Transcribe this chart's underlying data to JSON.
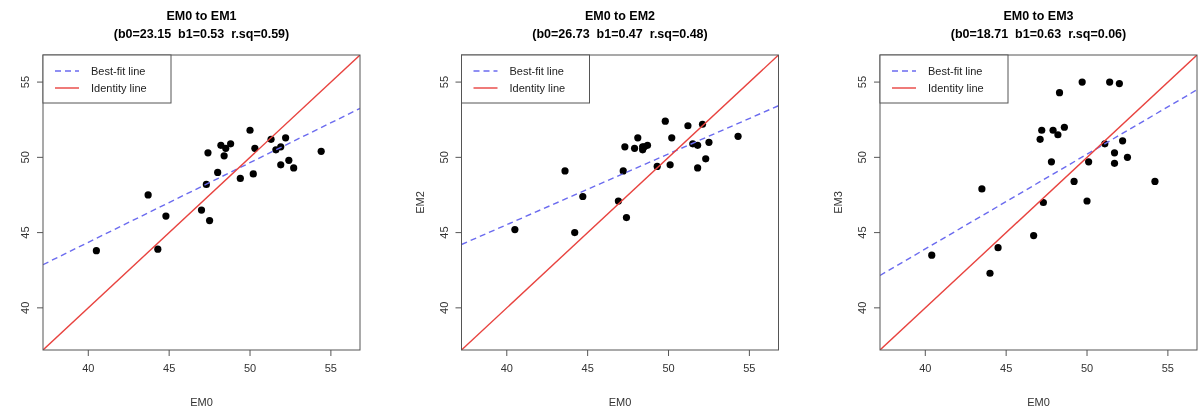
{
  "chart_data": [
    {
      "type": "scatter",
      "title": "EM0 to EM1",
      "subtitle": "(b0=23.15  b1=0.53  r.sq=0.59)",
      "xlabel": "EM0",
      "xlim": [
        37.2,
        56.8
      ],
      "ylim": [
        37.2,
        56.8
      ],
      "xticks": [
        40,
        45,
        50,
        55
      ],
      "yticks": [
        40,
        45,
        50,
        55
      ],
      "legend": "top left",
      "series": [
        {
          "type": "scatter",
          "color": "#000000",
          "marker": "circle",
          "x": [
            40.5,
            43.7,
            44.3,
            44.8,
            47.0,
            47.5,
            47.3,
            47.4,
            48.0,
            48.2,
            48.4,
            48.5,
            48.8,
            49.4,
            50.0,
            50.2,
            50.3,
            51.3,
            51.6,
            51.9,
            51.9,
            52.2,
            52.4,
            52.7,
            54.4
          ],
          "values": [
            43.8,
            47.5,
            43.9,
            46.1,
            46.5,
            45.8,
            48.2,
            50.3,
            49.0,
            50.8,
            50.1,
            50.6,
            50.9,
            48.6,
            51.8,
            48.9,
            50.6,
            51.2,
            50.5,
            50.7,
            49.5,
            51.3,
            49.8,
            49.3,
            50.4
          ]
        },
        {
          "type": "line",
          "name": "Best-fit line",
          "color": "#6b6bef",
          "line_style": "dashed",
          "x": [
            37.2,
            56.8
          ],
          "values": [
            42.87,
            53.25
          ]
        },
        {
          "type": "line",
          "name": "Identity line",
          "color": "#e8433f",
          "line_style": "solid",
          "x": [
            37.2,
            56.8
          ],
          "values": [
            37.2,
            56.8
          ]
        }
      ]
    },
    {
      "type": "scatter",
      "title": "EM0 to EM2",
      "subtitle": "(b0=26.73  b1=0.47  r.sq=0.48)",
      "xlabel": "EM0",
      "ylabel": "EM2",
      "xlim": [
        37.2,
        56.8
      ],
      "ylim": [
        37.2,
        56.8
      ],
      "xticks": [
        40,
        45,
        50,
        55
      ],
      "yticks": [
        40,
        45,
        50,
        55
      ],
      "legend": "top left",
      "series": [
        {
          "type": "scatter",
          "color": "#000000",
          "marker": "circle",
          "x": [
            40.5,
            43.6,
            44.2,
            44.7,
            46.9,
            47.4,
            47.2,
            47.3,
            47.9,
            48.1,
            48.4,
            48.4,
            48.5,
            48.7,
            49.3,
            49.8,
            50.1,
            50.2,
            51.2,
            51.5,
            51.8,
            51.8,
            52.1,
            52.3,
            52.5,
            54.3
          ],
          "values": [
            45.2,
            49.1,
            45.0,
            47.4,
            47.1,
            46.0,
            49.1,
            50.7,
            50.6,
            51.3,
            50.5,
            50.7,
            50.7,
            50.8,
            49.4,
            52.4,
            49.5,
            51.3,
            52.1,
            50.9,
            50.8,
            49.3,
            52.2,
            49.9,
            51.0,
            51.4
          ]
        },
        {
          "type": "line",
          "name": "Best-fit line",
          "color": "#6b6bef",
          "line_style": "dashed",
          "x": [
            37.2,
            56.8
          ],
          "values": [
            44.21,
            53.43
          ]
        },
        {
          "type": "line",
          "name": "Identity line",
          "color": "#e8433f",
          "line_style": "solid",
          "x": [
            37.2,
            56.8
          ],
          "values": [
            37.2,
            56.8
          ]
        }
      ]
    },
    {
      "type": "scatter",
      "title": "EM0 to EM3",
      "subtitle": "(b0=18.71  b1=0.63  r.sq=0.06)",
      "xlabel": "EM0",
      "ylabel": "EM3",
      "xlim": [
        37.2,
        56.8
      ],
      "ylim": [
        37.2,
        56.8
      ],
      "xticks": [
        40,
        45,
        50,
        55
      ],
      "yticks": [
        40,
        45,
        50,
        55
      ],
      "legend": "top left",
      "series": [
        {
          "type": "scatter",
          "color": "#000000",
          "marker": "circle",
          "x": [
            40.4,
            43.5,
            44.0,
            44.5,
            46.7,
            47.3,
            47.1,
            47.2,
            47.8,
            47.9,
            48.2,
            48.3,
            48.6,
            49.2,
            49.7,
            50.0,
            50.1,
            51.1,
            51.4,
            51.7,
            51.7,
            52.0,
            52.2,
            52.5,
            54.2
          ],
          "values": [
            43.5,
            47.9,
            42.3,
            44.0,
            44.8,
            47.0,
            51.2,
            51.8,
            49.7,
            51.8,
            51.5,
            54.3,
            52.0,
            48.4,
            55.0,
            47.1,
            49.7,
            50.9,
            55.0,
            50.3,
            49.6,
            54.9,
            51.1,
            50.0,
            48.4
          ]
        },
        {
          "type": "line",
          "name": "Best-fit line",
          "color": "#6b6bef",
          "line_style": "dashed",
          "x": [
            37.2,
            56.8
          ],
          "values": [
            42.15,
            54.49
          ]
        },
        {
          "type": "line",
          "name": "Identity line",
          "color": "#e8433f",
          "line_style": "solid",
          "x": [
            37.2,
            56.8
          ],
          "values": [
            37.2,
            56.8
          ]
        }
      ]
    }
  ]
}
